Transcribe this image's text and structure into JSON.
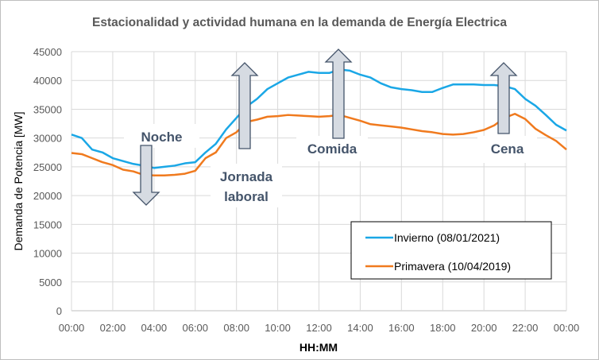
{
  "chart_data": {
    "type": "line",
    "title": "Estacionalidad y actividad humana en la demanda de Energía Electrica",
    "xlabel": "HH:MM",
    "ylabel": "Demanda de Potencia [MW]",
    "ylim": [
      0,
      45000
    ],
    "xlim_hours": [
      0,
      24
    ],
    "yticks": [
      "0",
      "5000",
      "10000",
      "15000",
      "20000",
      "25000",
      "30000",
      "35000",
      "40000",
      "45000"
    ],
    "xticks": [
      "00:00",
      "02:00",
      "04:00",
      "06:00",
      "08:00",
      "10:00",
      "12:00",
      "14:00",
      "16:00",
      "18:00",
      "20:00",
      "22:00",
      "00:00"
    ],
    "grid": true,
    "legend_position": "bottom-right",
    "x_hours": [
      0,
      0.5,
      1,
      1.5,
      2,
      2.5,
      3,
      3.5,
      4,
      4.5,
      5,
      5.5,
      6,
      6.5,
      7,
      7.5,
      8,
      8.5,
      9,
      9.5,
      10,
      10.5,
      11,
      11.5,
      12,
      12.5,
      13,
      13.5,
      14,
      14.5,
      15,
      15.5,
      16,
      16.5,
      17,
      17.5,
      18,
      18.5,
      19,
      19.5,
      20,
      20.5,
      21,
      21.5,
      22,
      22.5,
      23,
      23.5,
      24
    ],
    "series": [
      {
        "name": "Invierno (08/01/2021)",
        "color": "#1aa7e6",
        "values": [
          30600,
          30000,
          28000,
          27500,
          26500,
          26000,
          25500,
          25200,
          24800,
          25000,
          25200,
          25600,
          25800,
          27500,
          29000,
          31500,
          33500,
          35500,
          36800,
          38500,
          39500,
          40500,
          41000,
          41500,
          41300,
          41300,
          41900,
          41700,
          41000,
          40500,
          39500,
          38800,
          38500,
          38300,
          38000,
          38000,
          38700,
          39300,
          39300,
          39300,
          39200,
          39200,
          39000,
          38500,
          36800,
          35600,
          34000,
          32300,
          31300
        ]
      },
      {
        "name": "Primavera (10/04/2019)",
        "color": "#f07a1e",
        "values": [
          27400,
          27200,
          26500,
          25800,
          25300,
          24500,
          24200,
          23600,
          23500,
          23500,
          23600,
          23800,
          24300,
          26500,
          27500,
          30000,
          31000,
          32800,
          33200,
          33700,
          33800,
          34000,
          33900,
          33800,
          33700,
          33800,
          34000,
          33500,
          33000,
          32400,
          32200,
          32000,
          31800,
          31500,
          31200,
          31000,
          30700,
          30600,
          30700,
          31000,
          31400,
          32200,
          33500,
          34200,
          33300,
          31600,
          30500,
          29500,
          28000
        ]
      }
    ],
    "annotations": [
      {
        "text": "Noche",
        "direction": "down",
        "hour": 3.7
      },
      {
        "text": [
          "Jornada",
          "laboral"
        ],
        "direction": "up",
        "hour": 8.3
      },
      {
        "text": "Comida",
        "direction": "up",
        "hour": 12.9
      },
      {
        "text": "Cena",
        "direction": "up",
        "hour": 21
      }
    ]
  }
}
